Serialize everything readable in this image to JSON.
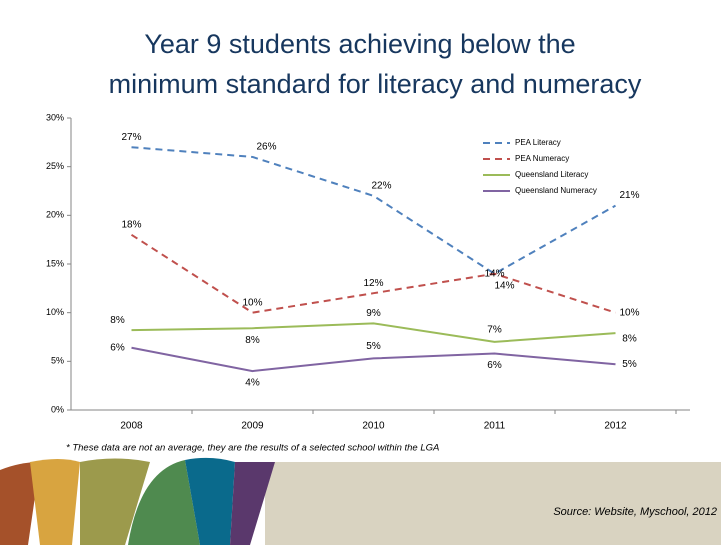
{
  "chart_data": {
    "type": "line",
    "title": [
      "Year 9 students achieving below the",
      "minimum standard for literacy and numeracy"
    ],
    "categories": [
      "2008",
      "2009",
      "2010",
      "2011",
      "2012"
    ],
    "series": [
      {
        "name": "PEA Literacy",
        "color": "#4f81bd",
        "dashed": true,
        "values": [
          27,
          26,
          22,
          14,
          21
        ],
        "value_labels": [
          "27%",
          "26%",
          "22%",
          "14%",
          "21%"
        ]
      },
      {
        "name": "PEA Numeracy",
        "color": "#c0504d",
        "dashed": true,
        "values": [
          18,
          10,
          12,
          14,
          10
        ],
        "value_labels": [
          "18%",
          "10%",
          "12%",
          "14%",
          "10%"
        ]
      },
      {
        "name": "Queensland Literacy",
        "color": "#9bbb59",
        "dashed": false,
        "values": [
          8.2,
          8.4,
          8.9,
          7.0,
          7.9
        ],
        "value_labels": [
          "8%",
          "8%",
          "9%",
          "7%",
          "8%"
        ]
      },
      {
        "name": "Queensland Numeracy",
        "color": "#8064a2",
        "dashed": false,
        "values": [
          6.4,
          4.0,
          5.3,
          5.8,
          4.7
        ],
        "value_labels": [
          "6%",
          "4%",
          "5%",
          "6%",
          "5%"
        ]
      }
    ],
    "ylim": [
      0,
      30
    ],
    "yticks": [
      {
        "value": 0,
        "label": "0%"
      },
      {
        "value": 5,
        "label": "5%"
      },
      {
        "value": 10,
        "label": "10%"
      },
      {
        "value": 15,
        "label": "15%"
      },
      {
        "value": 20,
        "label": "20%"
      },
      {
        "value": 25,
        "label": "25%"
      },
      {
        "value": 30,
        "label": "30%"
      }
    ],
    "grid": false,
    "legend": "upper right"
  },
  "footnote": "* These data are not an average, they are the results of a selected school within the LGA",
  "source": "Source: Website, Myschool, 2012"
}
